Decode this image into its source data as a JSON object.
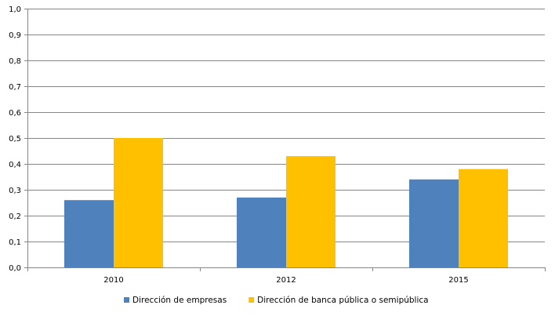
{
  "chart_data": {
    "type": "bar",
    "categories": [
      "2010",
      "2012",
      "2015"
    ],
    "series": [
      {
        "name": "Dirección de empresas",
        "values": [
          0.26,
          0.27,
          0.34
        ],
        "color": "#4f81bd"
      },
      {
        "name": "Dirección de banca pública o semipública",
        "values": [
          0.5,
          0.43,
          0.38
        ],
        "color": "#ffc000"
      }
    ],
    "ylim": [
      0,
      1.0
    ],
    "yticks": [
      "0,0",
      "0,1",
      "0,2",
      "0,3",
      "0,4",
      "0,5",
      "0,6",
      "0,7",
      "0,8",
      "0,9",
      "1,0"
    ],
    "grid": true,
    "legend_position": "bottom",
    "gridline_color": "#868686",
    "axis_color": "#868686"
  }
}
